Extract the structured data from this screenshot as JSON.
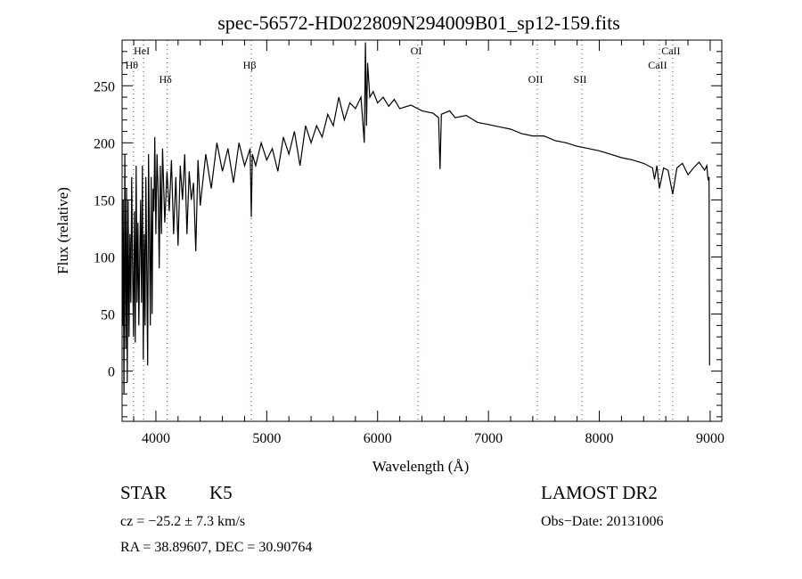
{
  "chart_data": {
    "type": "line",
    "title": "spec-56572-HD022809N294009B01_sp12-159.fits",
    "xlabel": "Wavelength (Å)",
    "ylabel": "Flux (relative)",
    "xlim": [
      3695,
      9105
    ],
    "ylim": [
      -44,
      290
    ],
    "xticks": [
      4000,
      5000,
      6000,
      7000,
      8000,
      9000
    ],
    "xtick_labels": [
      "4000",
      "5000",
      "6000",
      "7000",
      "8000",
      "9000"
    ],
    "yticks": [
      0,
      50,
      100,
      150,
      200,
      250
    ],
    "ytick_labels": [
      "0",
      "50",
      "100",
      "150",
      "200",
      "250"
    ],
    "grid": false,
    "line_color": "#000000",
    "marker_line_color": "#8b3a2a",
    "lines": [
      {
        "label": "Hθ",
        "wavelength": 3798,
        "row": 2
      },
      {
        "label": "HeI",
        "wavelength": 3889,
        "row": 1
      },
      {
        "label": "Hδ",
        "wavelength": 4102,
        "row": 3
      },
      {
        "label": "Hβ",
        "wavelength": 4861,
        "row": 2
      },
      {
        "label": "OI",
        "wavelength": 6364,
        "row": 1
      },
      {
        "label": "OII",
        "wavelength": 7441,
        "row": 3
      },
      {
        "label": "SII",
        "wavelength": 7843,
        "row": 3
      },
      {
        "label": "CaII",
        "wavelength": 8542,
        "row": 2
      },
      {
        "label": "CaII",
        "wavelength": 8662,
        "row": 1
      }
    ],
    "series": [
      {
        "name": "flux",
        "points": [
          [
            3700,
            40
          ],
          [
            3705,
            150
          ],
          [
            3712,
            -20
          ],
          [
            3720,
            190
          ],
          [
            3728,
            20
          ],
          [
            3735,
            160
          ],
          [
            3742,
            -10
          ],
          [
            3750,
            150
          ],
          [
            3758,
            30
          ],
          [
            3766,
            120
          ],
          [
            3774,
            60
          ],
          [
            3782,
            170
          ],
          [
            3790,
            90
          ],
          [
            3798,
            30
          ],
          [
            3806,
            140
          ],
          [
            3814,
            25
          ],
          [
            3822,
            180
          ],
          [
            3830,
            60
          ],
          [
            3838,
            130
          ],
          [
            3846,
            40
          ],
          [
            3854,
            100
          ],
          [
            3862,
            150
          ],
          [
            3870,
            60
          ],
          [
            3878,
            180
          ],
          [
            3886,
            10
          ],
          [
            3894,
            120
          ],
          [
            3902,
            40
          ],
          [
            3910,
            170
          ],
          [
            3918,
            90
          ],
          [
            3926,
            5
          ],
          [
            3934,
            190
          ],
          [
            3942,
            120
          ],
          [
            3950,
            40
          ],
          [
            3958,
            170
          ],
          [
            3966,
            50
          ],
          [
            3974,
            160
          ],
          [
            3982,
            140
          ],
          [
            3990,
            205
          ],
          [
            4000,
            120
          ],
          [
            4010,
            190
          ],
          [
            4020,
            160
          ],
          [
            4030,
            90
          ],
          [
            4040,
            180
          ],
          [
            4050,
            120
          ],
          [
            4060,
            195
          ],
          [
            4080,
            130
          ],
          [
            4100,
            175
          ],
          [
            4120,
            140
          ],
          [
            4140,
            185
          ],
          [
            4160,
            120
          ],
          [
            4180,
            170
          ],
          [
            4200,
            110
          ],
          [
            4220,
            180
          ],
          [
            4240,
            150
          ],
          [
            4260,
            190
          ],
          [
            4280,
            120
          ],
          [
            4300,
            175
          ],
          [
            4320,
            150
          ],
          [
            4340,
            165
          ],
          [
            4360,
            105
          ],
          [
            4380,
            185
          ],
          [
            4400,
            145
          ],
          [
            4450,
            190
          ],
          [
            4500,
            160
          ],
          [
            4550,
            200
          ],
          [
            4600,
            175
          ],
          [
            4650,
            195
          ],
          [
            4700,
            165
          ],
          [
            4750,
            200
          ],
          [
            4800,
            180
          ],
          [
            4850,
            195
          ],
          [
            4861,
            135
          ],
          [
            4870,
            190
          ],
          [
            4900,
            180
          ],
          [
            4950,
            200
          ],
          [
            5000,
            185
          ],
          [
            5050,
            195
          ],
          [
            5100,
            175
          ],
          [
            5150,
            205
          ],
          [
            5200,
            190
          ],
          [
            5250,
            210
          ],
          [
            5300,
            180
          ],
          [
            5350,
            215
          ],
          [
            5400,
            200
          ],
          [
            5450,
            215
          ],
          [
            5500,
            205
          ],
          [
            5550,
            225
          ],
          [
            5600,
            215
          ],
          [
            5650,
            240
          ],
          [
            5700,
            220
          ],
          [
            5750,
            235
          ],
          [
            5800,
            230
          ],
          [
            5850,
            240
          ],
          [
            5880,
            200
          ],
          [
            5890,
            288
          ],
          [
            5900,
            215
          ],
          [
            5910,
            270
          ],
          [
            5930,
            240
          ],
          [
            5960,
            245
          ],
          [
            6000,
            235
          ],
          [
            6050,
            240
          ],
          [
            6100,
            232
          ],
          [
            6150,
            238
          ],
          [
            6200,
            230
          ],
          [
            6300,
            233
          ],
          [
            6400,
            228
          ],
          [
            6500,
            226
          ],
          [
            6550,
            222
          ],
          [
            6563,
            177
          ],
          [
            6575,
            225
          ],
          [
            6650,
            228
          ],
          [
            6700,
            222
          ],
          [
            6800,
            224
          ],
          [
            6900,
            218
          ],
          [
            7000,
            216
          ],
          [
            7100,
            214
          ],
          [
            7200,
            212
          ],
          [
            7300,
            208
          ],
          [
            7400,
            206
          ],
          [
            7500,
            206
          ],
          [
            7600,
            202
          ],
          [
            7700,
            200
          ],
          [
            7800,
            197
          ],
          [
            7900,
            195
          ],
          [
            8000,
            193
          ],
          [
            8100,
            190
          ],
          [
            8200,
            187
          ],
          [
            8300,
            185
          ],
          [
            8400,
            182
          ],
          [
            8480,
            178
          ],
          [
            8498,
            168
          ],
          [
            8520,
            180
          ],
          [
            8542,
            160
          ],
          [
            8580,
            178
          ],
          [
            8620,
            176
          ],
          [
            8662,
            155
          ],
          [
            8700,
            178
          ],
          [
            8750,
            182
          ],
          [
            8800,
            172
          ],
          [
            8850,
            178
          ],
          [
            8900,
            183
          ],
          [
            8950,
            176
          ],
          [
            8970,
            180
          ],
          [
            8980,
            168
          ],
          [
            8990,
            170
          ],
          [
            8995,
            5
          ]
        ]
      }
    ]
  },
  "info": {
    "object_class": "STAR",
    "subclass": "K5",
    "survey": "LAMOST DR2",
    "cz": "cz = −25.2 ± 7.3 km/s",
    "obs_date": "Obs−Date: 20131006",
    "coords": "RA =  38.89607, DEC =  30.90764"
  }
}
